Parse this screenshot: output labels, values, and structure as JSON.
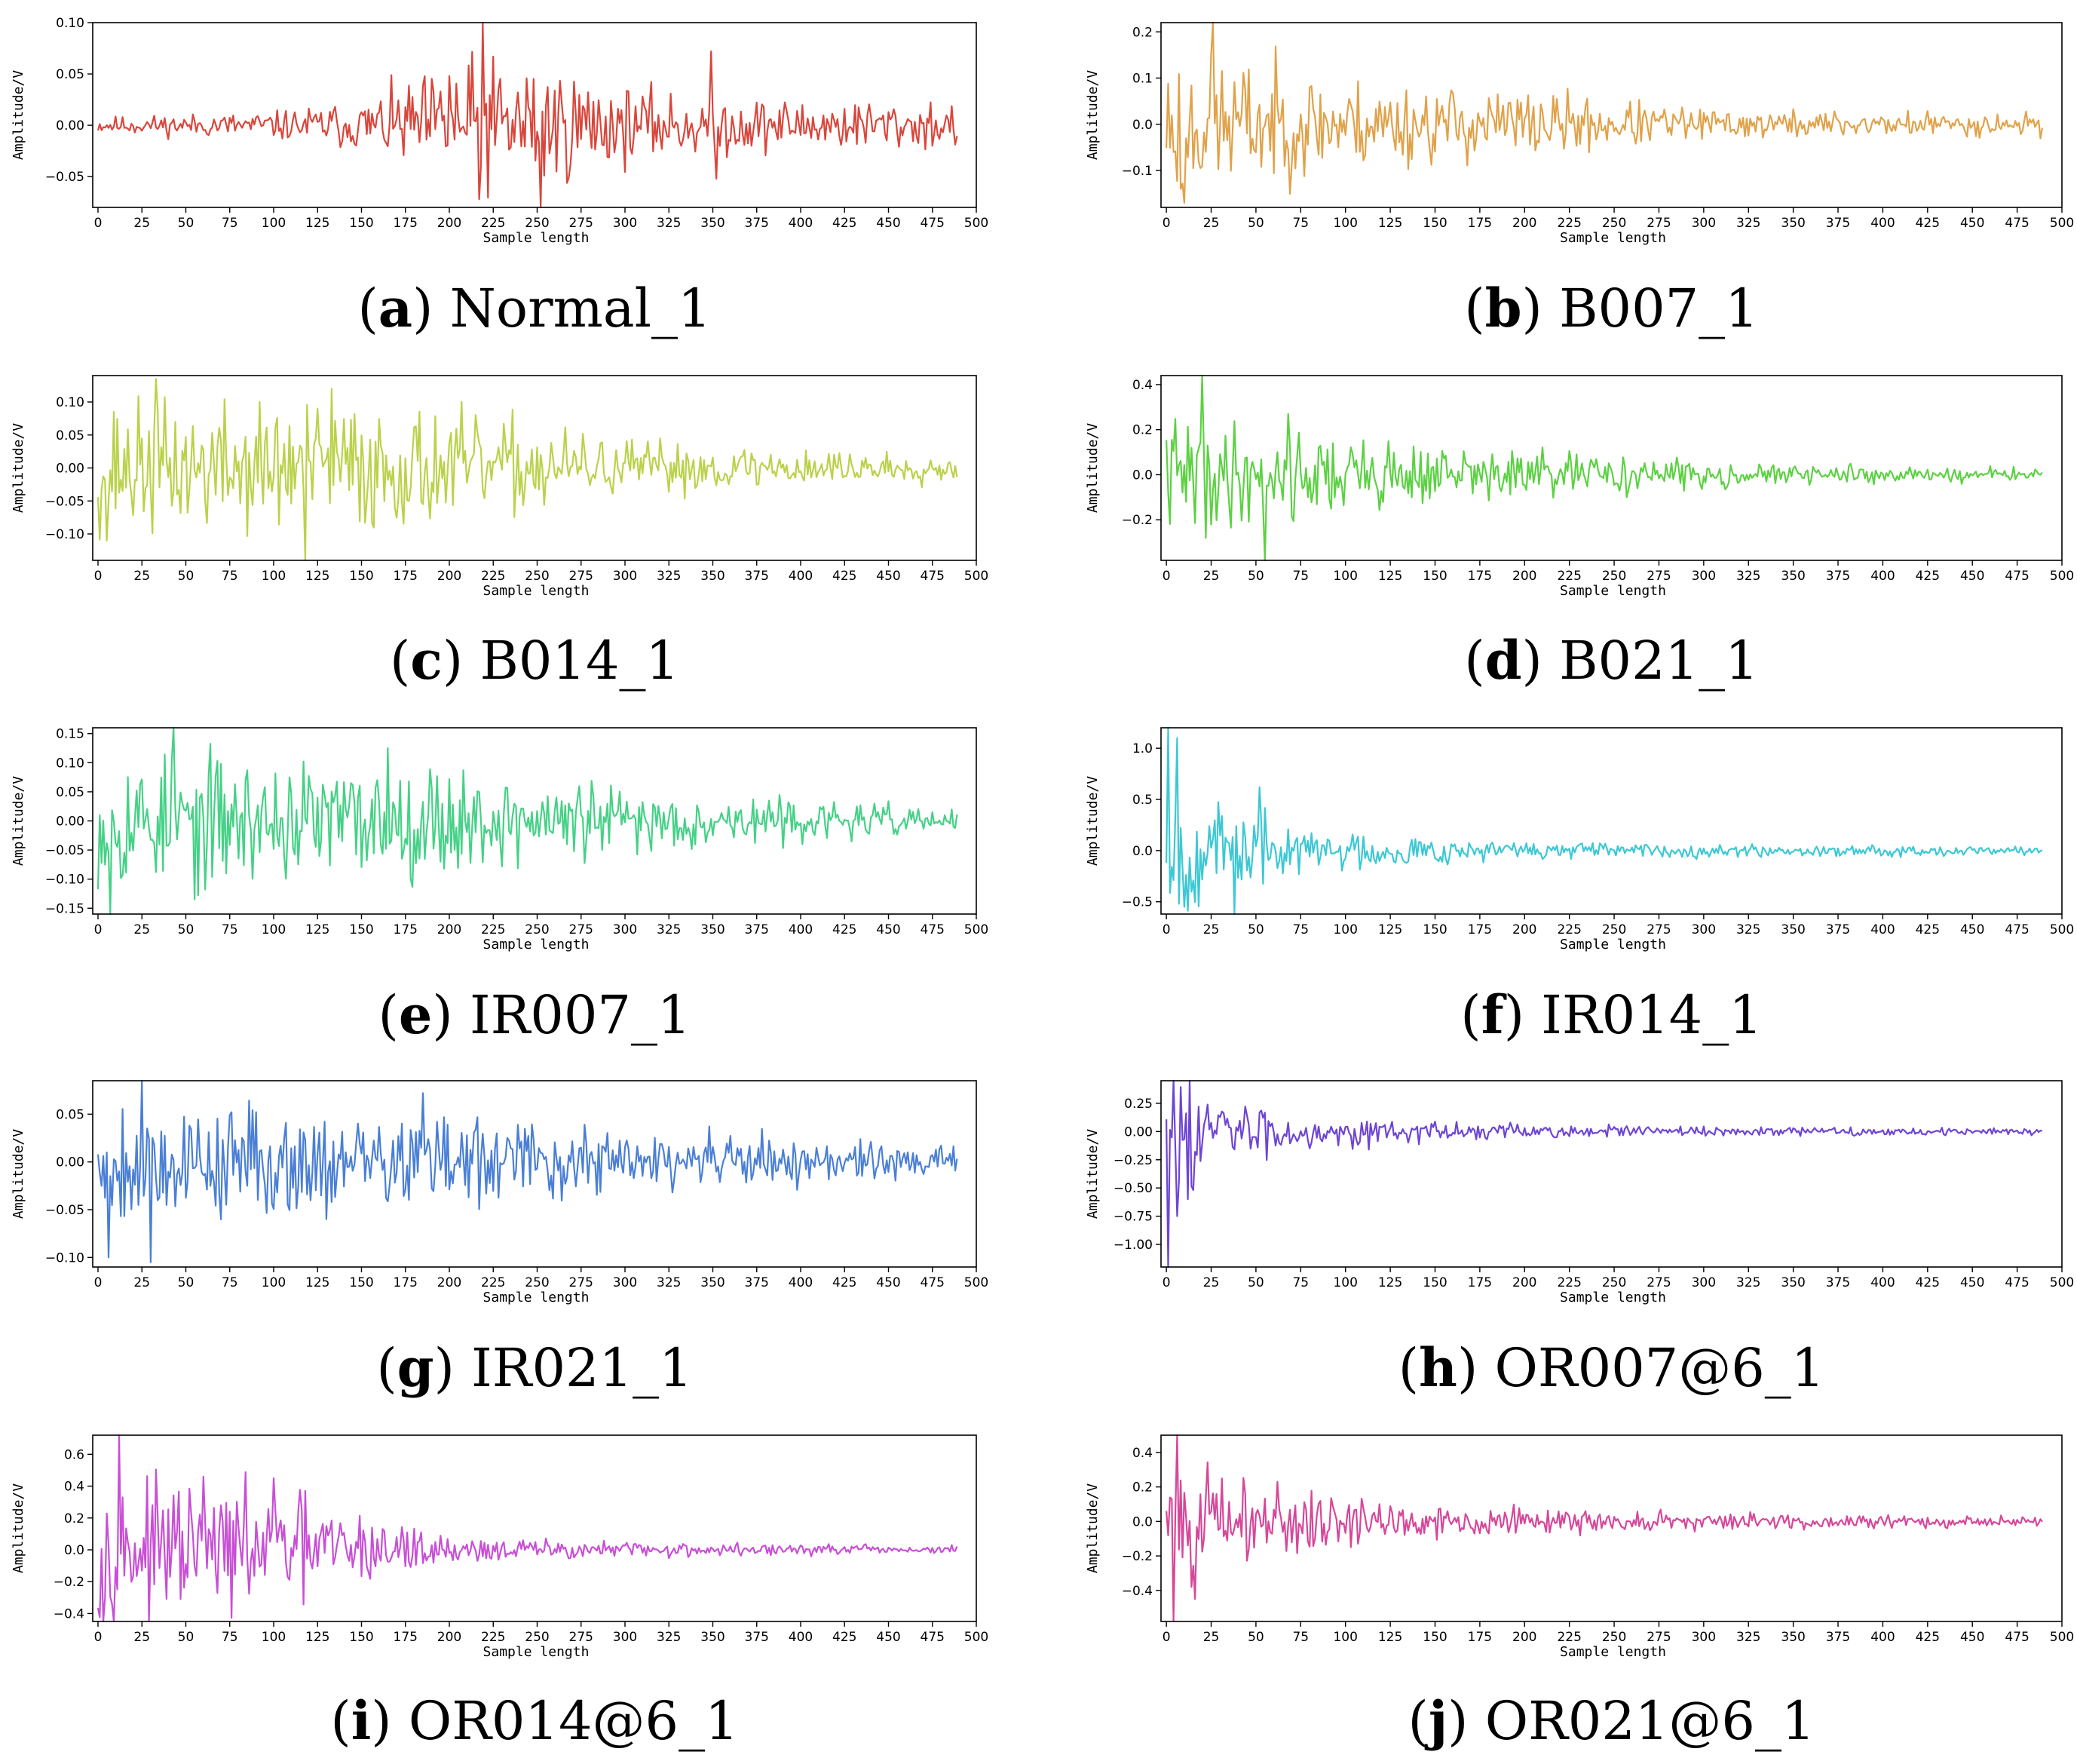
{
  "chart_data": [
    {
      "type": "line",
      "letter": "a",
      "name": "Normal_1",
      "color": "#d9463b",
      "ylabel": "Amplitude/V",
      "xlabel": "Sample length",
      "xlim": [
        -3,
        500
      ],
      "ylim": [
        -0.08,
        0.1
      ],
      "xticks": [
        0,
        25,
        50,
        75,
        100,
        125,
        150,
        175,
        200,
        225,
        250,
        275,
        300,
        325,
        350,
        375,
        400,
        425,
        450,
        475,
        500
      ],
      "yticks": [
        -0.05,
        0.0,
        0.05,
        0.1
      ],
      "ytick_labels": [
        "−0.05",
        "0.00",
        "0.05",
        "0.10"
      ],
      "n_samples": 490,
      "seed": 11,
      "amplitude_profile": [
        [
          0,
          0.005
        ],
        [
          100,
          0.008
        ],
        [
          150,
          0.015
        ],
        [
          190,
          0.03
        ],
        [
          210,
          0.04
        ],
        [
          250,
          0.04
        ],
        [
          300,
          0.022
        ],
        [
          400,
          0.015
        ],
        [
          490,
          0.015
        ]
      ],
      "peaks": [
        [
          219,
          0.1
        ],
        [
          217,
          -0.072
        ],
        [
          252,
          -0.08
        ],
        [
          349,
          0.072
        ],
        [
          352,
          -0.052
        ],
        [
          200,
          0.048
        ]
      ]
    },
    {
      "type": "line",
      "letter": "b",
      "name": "B007_1",
      "color": "#e0a24a",
      "ylabel": "Amplitude/V",
      "xlabel": "Sample length",
      "xlim": [
        -3,
        500
      ],
      "ylim": [
        -0.18,
        0.22
      ],
      "xticks": [
        0,
        25,
        50,
        75,
        100,
        125,
        150,
        175,
        200,
        225,
        250,
        275,
        300,
        325,
        350,
        375,
        400,
        425,
        450,
        475,
        500
      ],
      "yticks": [
        -0.1,
        0.0,
        0.1,
        0.2
      ],
      "ytick_labels": [
        "−0.1",
        "0.0",
        "0.1",
        "0.2"
      ],
      "n_samples": 490,
      "seed": 23,
      "amplitude_profile": [
        [
          0,
          0.1
        ],
        [
          50,
          0.08
        ],
        [
          100,
          0.06
        ],
        [
          200,
          0.045
        ],
        [
          300,
          0.02
        ],
        [
          490,
          0.015
        ]
      ],
      "peaks": [
        [
          26,
          0.22
        ],
        [
          10,
          -0.17
        ],
        [
          8,
          -0.14
        ]
      ]
    },
    {
      "type": "line",
      "letter": "c",
      "name": "B014_1",
      "color": "#bad24a",
      "ylabel": "Amplitude/V",
      "xlabel": "Sample length",
      "xlim": [
        -3,
        500
      ],
      "ylim": [
        -0.14,
        0.14
      ],
      "xticks": [
        0,
        25,
        50,
        75,
        100,
        125,
        150,
        175,
        200,
        225,
        250,
        275,
        300,
        325,
        350,
        375,
        400,
        425,
        450,
        475,
        500
      ],
      "yticks": [
        -0.1,
        -0.05,
        0.0,
        0.05,
        0.1
      ],
      "ytick_labels": [
        "−0.10",
        "−0.05",
        "0.00",
        "0.05",
        "0.10"
      ],
      "n_samples": 490,
      "seed": 37,
      "amplitude_profile": [
        [
          0,
          0.06
        ],
        [
          150,
          0.06
        ],
        [
          250,
          0.04
        ],
        [
          300,
          0.025
        ],
        [
          490,
          0.012
        ]
      ],
      "peaks": [
        [
          33,
          0.135
        ],
        [
          118,
          -0.14
        ],
        [
          133,
          0.12
        ],
        [
          5,
          -0.11
        ]
      ]
    },
    {
      "type": "line",
      "letter": "d",
      "name": "B021_1",
      "color": "#5cd143",
      "ylabel": "Amplitude/V",
      "xlabel": "Sample length",
      "xlim": [
        -3,
        500
      ],
      "ylim": [
        -0.38,
        0.44
      ],
      "xticks": [
        0,
        25,
        50,
        75,
        100,
        125,
        150,
        175,
        200,
        225,
        250,
        275,
        300,
        325,
        350,
        375,
        400,
        425,
        450,
        475,
        500
      ],
      "yticks": [
        -0.2,
        0.0,
        0.2,
        0.4
      ],
      "ytick_labels": [
        "−0.2",
        "0.0",
        "0.2",
        "0.4"
      ],
      "n_samples": 490,
      "seed": 41,
      "amplitude_profile": [
        [
          0,
          0.15
        ],
        [
          75,
          0.12
        ],
        [
          150,
          0.08
        ],
        [
          250,
          0.05
        ],
        [
          350,
          0.025
        ],
        [
          490,
          0.018
        ]
      ],
      "peaks": [
        [
          20,
          0.44
        ],
        [
          55,
          -0.38
        ],
        [
          68,
          0.27
        ],
        [
          22,
          -0.28
        ]
      ]
    },
    {
      "type": "line",
      "letter": "e",
      "name": "IR007_1",
      "color": "#45d186",
      "ylabel": "Amplitude/V",
      "xlabel": "Sample length",
      "xlim": [
        -3,
        500
      ],
      "ylim": [
        -0.16,
        0.16
      ],
      "xticks": [
        0,
        25,
        50,
        75,
        100,
        125,
        150,
        175,
        200,
        225,
        250,
        275,
        300,
        325,
        350,
        375,
        400,
        425,
        450,
        475,
        500
      ],
      "yticks": [
        -0.15,
        -0.1,
        -0.05,
        0.0,
        0.05,
        0.1,
        0.15
      ],
      "ytick_labels": [
        "−0.15",
        "−0.10",
        "−0.05",
        "0.00",
        "0.05",
        "0.10",
        "0.15"
      ],
      "n_samples": 490,
      "seed": 53,
      "amplitude_profile": [
        [
          0,
          0.07
        ],
        [
          175,
          0.06
        ],
        [
          300,
          0.035
        ],
        [
          400,
          0.02
        ],
        [
          490,
          0.015
        ]
      ],
      "peaks": [
        [
          43,
          0.16
        ],
        [
          7,
          -0.16
        ],
        [
          165,
          0.125
        ],
        [
          55,
          -0.135
        ]
      ]
    },
    {
      "type": "line",
      "letter": "f",
      "name": "IR014_1",
      "color": "#3cc8d4",
      "ylabel": "Amplitude/V",
      "xlabel": "Sample length",
      "xlim": [
        -3,
        500
      ],
      "ylim": [
        -0.62,
        1.2
      ],
      "xticks": [
        0,
        25,
        50,
        75,
        100,
        125,
        150,
        175,
        200,
        225,
        250,
        275,
        300,
        325,
        350,
        375,
        400,
        425,
        450,
        475,
        500
      ],
      "yticks": [
        -0.5,
        0.0,
        0.5,
        1.0
      ],
      "ytick_labels": [
        "−0.5",
        "0.0",
        "0.5",
        "1.0"
      ],
      "n_samples": 490,
      "seed": 67,
      "amplitude_profile": [
        [
          0,
          0.4
        ],
        [
          30,
          0.25
        ],
        [
          75,
          0.15
        ],
        [
          150,
          0.08
        ],
        [
          250,
          0.04
        ],
        [
          490,
          0.025
        ]
      ],
      "peaks": [
        [
          1,
          1.2
        ],
        [
          6,
          1.1
        ],
        [
          38,
          -0.62
        ],
        [
          52,
          0.62
        ],
        [
          10,
          -0.55
        ]
      ]
    },
    {
      "type": "line",
      "letter": "g",
      "name": "IR021_1",
      "color": "#4a7fd6",
      "ylabel": "Amplitude/V",
      "xlabel": "Sample length",
      "xlim": [
        -3,
        500
      ],
      "ylim": [
        -0.11,
        0.085
      ],
      "xticks": [
        0,
        25,
        50,
        75,
        100,
        125,
        150,
        175,
        200,
        225,
        250,
        275,
        300,
        325,
        350,
        375,
        400,
        425,
        450,
        475,
        500
      ],
      "yticks": [
        -0.1,
        -0.05,
        0.0,
        0.05
      ],
      "ytick_labels": [
        "−0.10",
        "−0.05",
        "0.00",
        "0.05"
      ],
      "n_samples": 490,
      "seed": 79,
      "amplitude_profile": [
        [
          0,
          0.04
        ],
        [
          110,
          0.035
        ],
        [
          250,
          0.025
        ],
        [
          400,
          0.015
        ],
        [
          490,
          0.01
        ]
      ],
      "peaks": [
        [
          25,
          0.085
        ],
        [
          30,
          -0.105
        ],
        [
          6,
          -0.1
        ],
        [
          185,
          0.072
        ]
      ]
    },
    {
      "type": "line",
      "letter": "h",
      "name": "OR007@6_1",
      "color": "#6e45d4",
      "ylabel": "Amplitude/V",
      "xlabel": "Sample length",
      "xlim": [
        -3,
        500
      ],
      "ylim": [
        -1.2,
        0.45
      ],
      "xticks": [
        0,
        25,
        50,
        75,
        100,
        125,
        150,
        175,
        200,
        225,
        250,
        275,
        300,
        325,
        350,
        375,
        400,
        425,
        450,
        475,
        500
      ],
      "yticks": [
        -1.0,
        -0.75,
        -0.5,
        -0.25,
        0.0,
        0.25
      ],
      "ytick_labels": [
        "−1.00",
        "−0.75",
        "−0.50",
        "−0.25",
        "0.00",
        "0.25"
      ],
      "n_samples": 490,
      "seed": 83,
      "amplitude_profile": [
        [
          0,
          0.3
        ],
        [
          25,
          0.2
        ],
        [
          75,
          0.1
        ],
        [
          150,
          0.05
        ],
        [
          300,
          0.025
        ],
        [
          490,
          0.018
        ]
      ],
      "peaks": [
        [
          1,
          -1.2
        ],
        [
          13,
          0.45
        ],
        [
          6,
          -0.75
        ],
        [
          12,
          -0.6
        ]
      ]
    },
    {
      "type": "line",
      "letter": "i",
      "name": "OR014@6_1",
      "color": "#c84fd6",
      "ylabel": "Amplitude/V",
      "xlabel": "Sample length",
      "xlim": [
        -3,
        500
      ],
      "ylim": [
        -0.45,
        0.72
      ],
      "xticks": [
        0,
        25,
        50,
        75,
        100,
        125,
        150,
        175,
        200,
        225,
        250,
        275,
        300,
        325,
        350,
        375,
        400,
        425,
        450,
        475,
        500
      ],
      "yticks": [
        -0.4,
        -0.2,
        0.0,
        0.2,
        0.4,
        0.6
      ],
      "ytick_labels": [
        "−0.4",
        "−0.2",
        "0.0",
        "0.2",
        "0.4",
        "0.6"
      ],
      "n_samples": 490,
      "seed": 97,
      "amplitude_profile": [
        [
          0,
          0.25
        ],
        [
          125,
          0.2
        ],
        [
          200,
          0.05
        ],
        [
          300,
          0.03
        ],
        [
          490,
          0.015
        ]
      ],
      "peaks": [
        [
          12,
          0.72
        ],
        [
          3,
          -0.45
        ],
        [
          100,
          0.45
        ],
        [
          60,
          0.46
        ]
      ]
    },
    {
      "type": "line",
      "letter": "j",
      "name": "OR021@6_1",
      "color": "#d6479a",
      "ylabel": "Amplitude/V",
      "xlabel": "Sample length",
      "xlim": [
        -3,
        500
      ],
      "ylim": [
        -0.58,
        0.5
      ],
      "xticks": [
        0,
        25,
        50,
        75,
        100,
        125,
        150,
        175,
        200,
        225,
        250,
        275,
        300,
        325,
        350,
        375,
        400,
        425,
        450,
        475,
        500
      ],
      "yticks": [
        -0.4,
        -0.2,
        0.0,
        0.2,
        0.4
      ],
      "ytick_labels": [
        "−0.4",
        "−0.2",
        "0.0",
        "0.2",
        "0.4"
      ],
      "n_samples": 490,
      "seed": 101,
      "amplitude_profile": [
        [
          0,
          0.2
        ],
        [
          50,
          0.15
        ],
        [
          125,
          0.07
        ],
        [
          250,
          0.035
        ],
        [
          490,
          0.015
        ]
      ],
      "peaks": [
        [
          6,
          0.5
        ],
        [
          4,
          -0.58
        ],
        [
          16,
          -0.45
        ]
      ]
    }
  ]
}
